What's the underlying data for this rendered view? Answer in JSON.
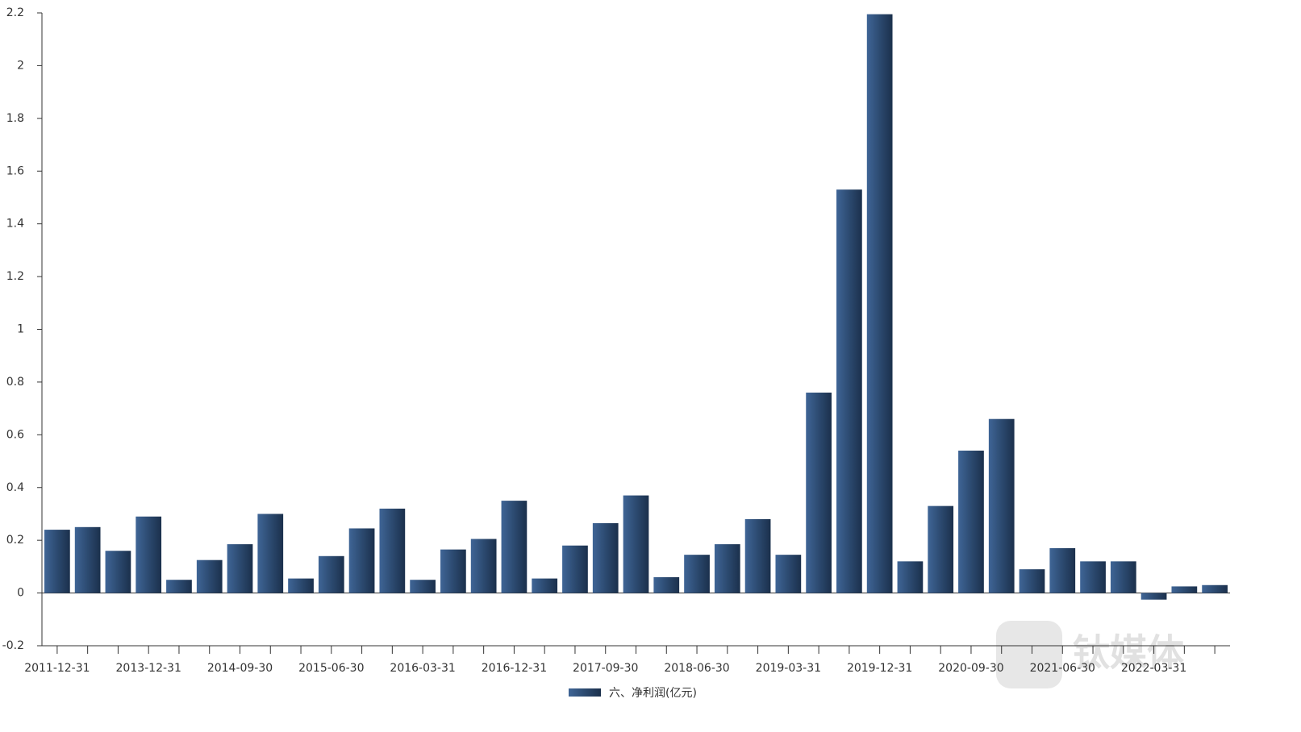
{
  "chart_data": {
    "type": "bar",
    "categories": [
      "2011-12-31",
      null,
      null,
      "2013-12-31",
      null,
      null,
      "2014-09-30",
      null,
      null,
      "2015-06-30",
      null,
      null,
      "2016-03-31",
      null,
      null,
      "2016-12-31",
      null,
      null,
      "2017-09-30",
      null,
      null,
      "2018-06-30",
      null,
      null,
      "2019-03-31",
      null,
      null,
      "2019-12-31",
      null,
      null,
      "2020-09-30",
      null,
      null,
      "2021-06-30",
      null,
      null,
      "2022-03-31",
      null,
      null
    ],
    "series": [
      {
        "name": "六、净利润(亿元)",
        "color": "#2c4a70",
        "values": [
          0.24,
          0.25,
          0.16,
          0.29,
          0.05,
          0.125,
          0.185,
          0.3,
          0.055,
          0.14,
          0.245,
          0.32,
          0.05,
          0.165,
          0.205,
          0.35,
          0.055,
          0.18,
          0.265,
          0.37,
          0.06,
          0.145,
          0.185,
          0.28,
          0.145,
          0.76,
          1.53,
          2.195,
          0.12,
          0.33,
          0.54,
          0.66,
          0.09,
          0.17,
          0.12,
          0.12,
          -0.025,
          0.025,
          0.03
        ]
      }
    ],
    "ylim": [
      -0.2,
      2.2
    ],
    "yticks": [
      -0.2,
      0,
      0.2,
      0.4,
      0.6,
      0.8,
      1,
      1.2,
      1.4,
      1.6,
      1.8,
      2,
      2.2
    ],
    "legend": "bottom",
    "watermark": "钛媒体"
  }
}
